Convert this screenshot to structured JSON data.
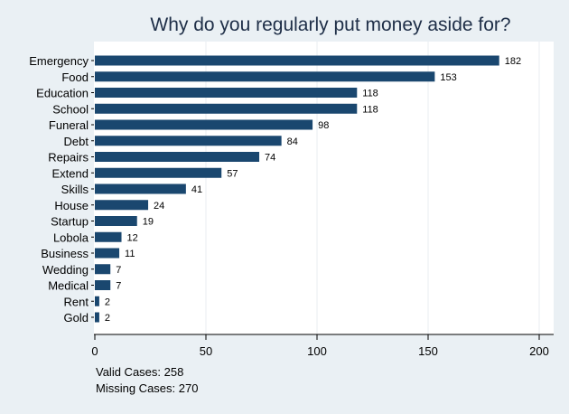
{
  "colors": {
    "background": "#eaf0f4",
    "plot_background": "#ffffff",
    "bar": "#1a476f",
    "grid": "#e8eef2",
    "title": "#1e2e47"
  },
  "notes": {
    "valid": "Valid Cases: 258",
    "missing": "Missing Cases: 270"
  },
  "chart_data": {
    "type": "bar",
    "orientation": "horizontal",
    "title": "Why do you regularly put money aside for?",
    "xlabel": "",
    "ylabel": "",
    "categories": [
      "Emergency",
      "Food",
      "Education",
      "School",
      "Funeral",
      "Debt",
      "Repairs",
      "Extend",
      "Skills",
      "House",
      "Startup",
      "Lobola",
      "Business",
      "Wedding",
      "Medical",
      "Rent",
      "Gold"
    ],
    "values": [
      182,
      153,
      118,
      118,
      98,
      84,
      74,
      57,
      41,
      24,
      19,
      12,
      11,
      7,
      7,
      2,
      2
    ],
    "xlim": [
      0,
      210
    ],
    "xticks": [
      0,
      50,
      100,
      150,
      200
    ],
    "grid": true,
    "data_labels": true
  }
}
